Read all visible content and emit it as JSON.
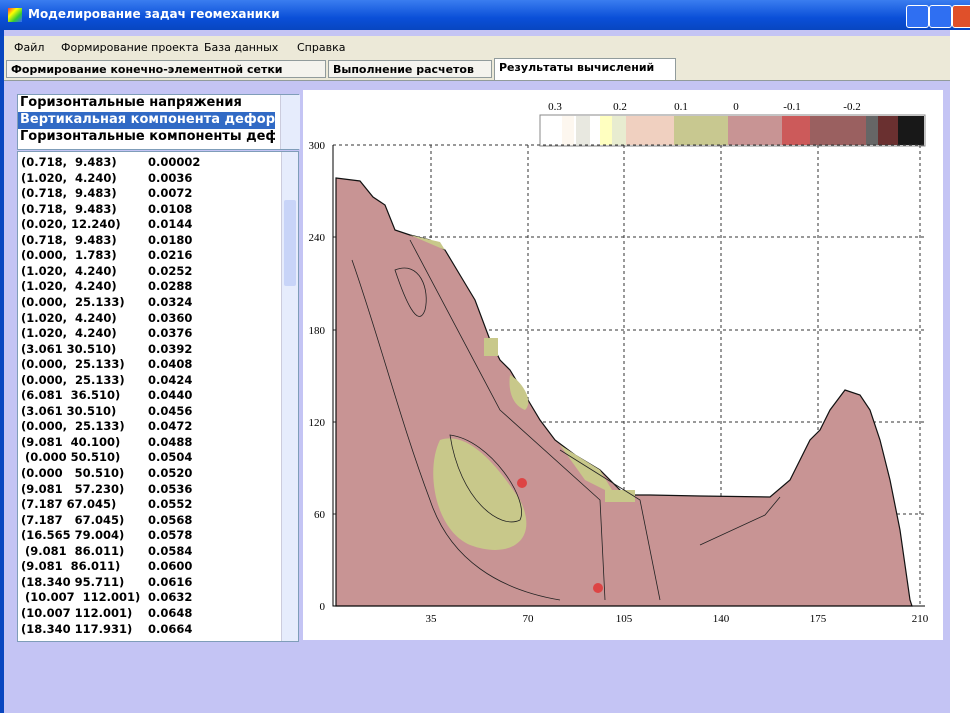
{
  "window": {
    "title": "Моделирование задач геомеханики"
  },
  "menu": [
    "Файл",
    "Формирование проекта",
    "База данных",
    "Справка"
  ],
  "tabs": [
    "Формирование конечно-элементной сетки",
    "Выполнение расчетов",
    "Результаты вычислений"
  ],
  "combo": [
    "Горизонтальные напряжения",
    "Вертикальная компонента дефор",
    "Горизонтальные компоненты деф"
  ],
  "list": [
    [
      "(0.718,  9.483)",
      "0.00002"
    ],
    [
      "(1.020,  4.240)",
      "0.0036"
    ],
    [
      "(0.718,  9.483)",
      "0.0072"
    ],
    [
      "(0.718,  9.483)",
      "0.0108"
    ],
    [
      "(0.020, 12.240)",
      "0.0144"
    ],
    [
      "(0.718,  9.483)",
      "0.0180"
    ],
    [
      "(0.000,  1.783)",
      "0.0216"
    ],
    [
      "(1.020,  4.240)",
      "0.0252"
    ],
    [
      "(1.020,  4.240)",
      "0.0288"
    ],
    [
      "(0.000,  25.133)",
      "0.0324"
    ],
    [
      "(1.020,  4.240)",
      "0.0360"
    ],
    [
      "(1.020,  4.240)",
      "0.0376"
    ],
    [
      "(3.061 30.510)",
      "0.0392"
    ],
    [
      "(0.000,  25.133)",
      "0.0408"
    ],
    [
      "(0.000,  25.133)",
      "0.0424"
    ],
    [
      "(6.081  36.510)",
      "0.0440"
    ],
    [
      "(3.061 30.510)",
      "0.0456"
    ],
    [
      "(0.000,  25.133)",
      "0.0472"
    ],
    [
      "(9.081  40.100)",
      "0.0488"
    ],
    [
      " (0.000 50.510)",
      "0.0504"
    ],
    [
      "(0.000   50.510)",
      "0.0520"
    ],
    [
      "(9.081   57.230)",
      "0.0536"
    ],
    [
      "(7.187 67.045)",
      "0.0552"
    ],
    [
      "(7.187   67.045)",
      "0.0568"
    ],
    [
      "(16.565 79.004)",
      "0.0578"
    ],
    [
      " (9.081  86.011)",
      "0.0584"
    ],
    [
      "(9.081  86.011)",
      "0.0600"
    ],
    [
      "(18.340 95.711)",
      "0.0616"
    ],
    [
      " (10.007  112.001)",
      "0.0632"
    ],
    [
      "(10.007 112.001)",
      "0.0648"
    ],
    [
      "(18.340 117.931)",
      "0.0664"
    ]
  ],
  "plot": {
    "scale_labels": [
      "0.3",
      "0.2",
      "0.1",
      "0",
      "-0.1",
      "-0.2"
    ],
    "x_ticks": [
      "35",
      "70",
      "105",
      "140",
      "175",
      "210"
    ],
    "y_ticks": [
      "0",
      "60",
      "120",
      "180",
      "240",
      "300"
    ]
  }
}
